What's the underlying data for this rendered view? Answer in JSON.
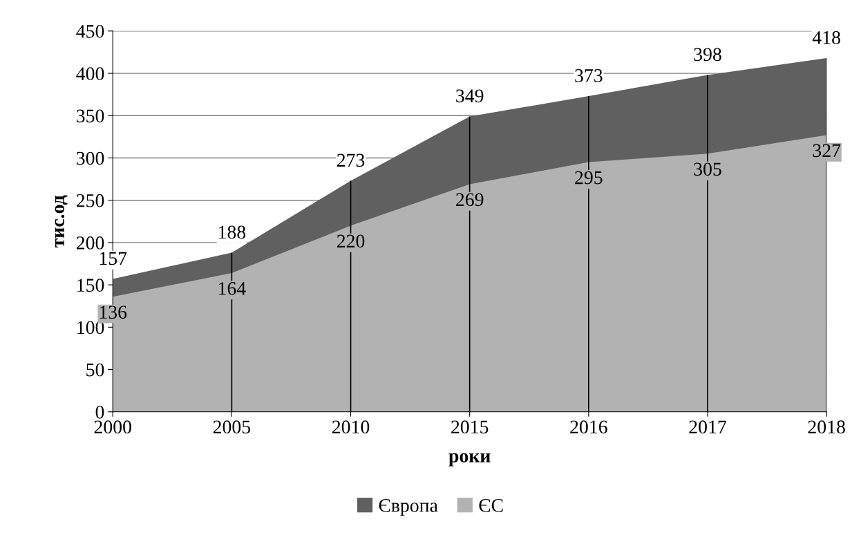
{
  "chart_data": {
    "type": "area",
    "ylabel": "тис.од",
    "xlabel": "роки",
    "categories": [
      "2000",
      "2005",
      "2010",
      "2015",
      "2016",
      "2017",
      "2018"
    ],
    "series": [
      {
        "name": "Європа",
        "color": "#606060",
        "values": [
          157,
          188,
          273,
          349,
          373,
          398,
          418
        ]
      },
      {
        "name": "ЄС",
        "color": "#b2b2b2",
        "values": [
          136,
          164,
          220,
          269,
          295,
          305,
          327
        ]
      }
    ],
    "ylim": [
      0,
      450
    ],
    "yticks": [
      0,
      50,
      100,
      150,
      200,
      250,
      300,
      350,
      400,
      450
    ],
    "grid": true,
    "data_labels": true,
    "legend": "bottom"
  }
}
